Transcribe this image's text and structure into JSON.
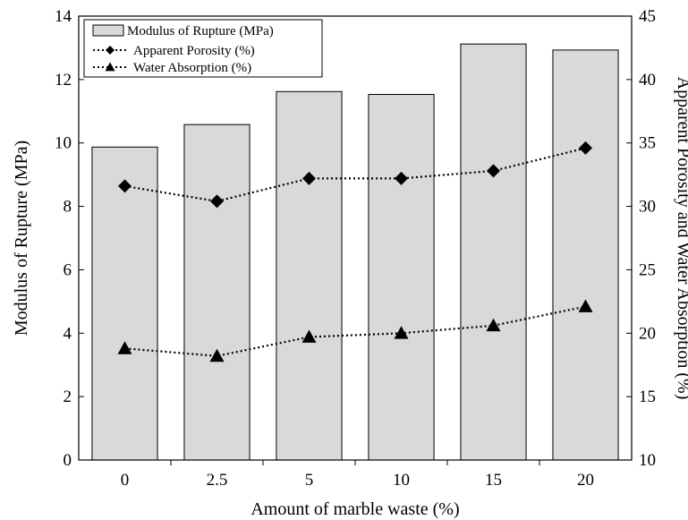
{
  "chart_data": {
    "type": "bar",
    "categories": [
      "0",
      "2.5",
      "5",
      "10",
      "15",
      "20"
    ],
    "xlabel": "Amount of marble waste (%)",
    "ylabel": "Modulus of Rupture (MPa)",
    "y2label": "Apparent Porosity and Water Absorption (%)",
    "ylim": [
      0,
      14
    ],
    "y2lim": [
      10,
      45
    ],
    "yticks": [
      "0",
      "2",
      "4",
      "6",
      "8",
      "10",
      "12",
      "14"
    ],
    "y2ticks": [
      "10",
      "15",
      "20",
      "25",
      "30",
      "35",
      "40",
      "45"
    ],
    "grid": false,
    "legend_position": "top-left",
    "series": [
      {
        "name": "Modulus of Rupture (MPa)",
        "type": "bar",
        "axis": "left",
        "values": [
          9.87,
          10.58,
          11.62,
          11.53,
          13.12,
          12.93
        ],
        "color": "#d9d9d9",
        "edge_color": "#000000"
      },
      {
        "name": "Apparent Porosity (%)",
        "type": "line",
        "axis": "right",
        "marker": "diamond",
        "line_style": "dotted",
        "values": [
          31.6,
          30.4,
          32.2,
          32.2,
          32.8,
          34.6
        ],
        "color": "#000000"
      },
      {
        "name": "Water Absorption (%)",
        "type": "line",
        "axis": "right",
        "marker": "triangle",
        "line_style": "dotted",
        "values": [
          18.8,
          18.2,
          19.7,
          20.0,
          20.6,
          22.1
        ],
        "color": "#000000"
      }
    ]
  }
}
